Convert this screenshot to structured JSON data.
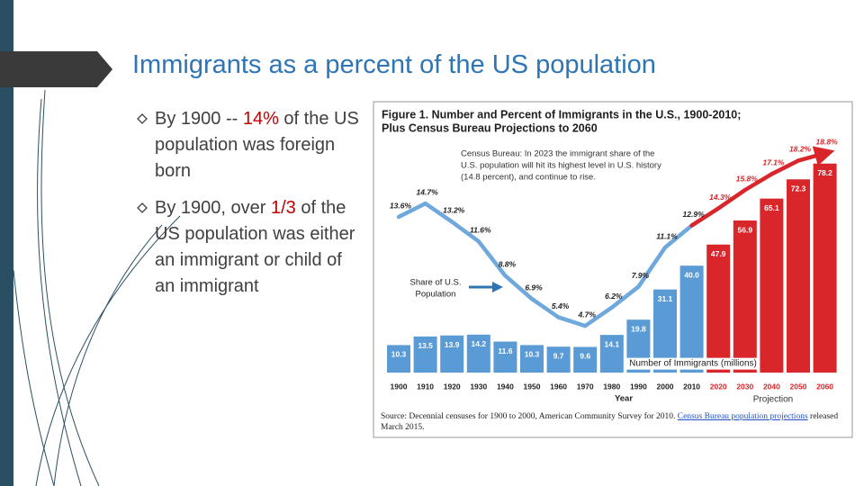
{
  "slide": {
    "title": "Immigrants as a percent of the US population",
    "bullets": [
      {
        "parts": [
          {
            "text": "By 1900 -- ",
            "color": "#404040"
          },
          {
            "text": "14%",
            "color": "#c00000"
          },
          {
            "text": " of the US population was foreign born",
            "color": "#404040"
          }
        ]
      },
      {
        "parts": [
          {
            "text": "By 1900, over ",
            "color": "#404040"
          },
          {
            "text": "1/3",
            "color": "#c00000"
          },
          {
            "text": " of the US population was either an immigrant or child of an immigrant",
            "color": "#404040"
          }
        ]
      }
    ]
  },
  "chart_data": {
    "type": "bar-line",
    "title_lines": [
      "Figure 1. Number and Percent of Immigrants in the U.S., 1900-2010;",
      "Plus Census Bureau Projections to 2060"
    ],
    "annotation_lines": [
      "Census Bureau: In 2023 the immigrant share of the",
      "U.S. population will hit its highest level in U.S. history",
      "(14.8 percent), and continue to rise."
    ],
    "line_label_lines": [
      "Share of U.S.",
      "Population"
    ],
    "bar_label": "Number of Immigrants (millions)",
    "x_label": "Year",
    "projection_label": "Projection",
    "categories": [
      "1900",
      "1910",
      "1920",
      "1930",
      "1940",
      "1950",
      "1960",
      "1970",
      "1980",
      "1990",
      "2000",
      "2010",
      "2020",
      "2030",
      "2040",
      "2050",
      "2060"
    ],
    "series": [
      {
        "name": "Number of Immigrants (millions)",
        "kind": "bar",
        "values": [
          10.3,
          13.5,
          13.9,
          14.2,
          11.6,
          10.3,
          9.7,
          9.6,
          14.1,
          19.8,
          31.1,
          40.0,
          47.9,
          56.9,
          65.1,
          72.3,
          78.2
        ],
        "value_labels": [
          "10.3",
          "13.5",
          "13.9",
          "14.2",
          "11.6",
          "10.3",
          "9.7",
          "9.6",
          "14.1",
          "19.8",
          "31.1",
          "40.0",
          "47.9",
          "56.9",
          "65.1",
          "72.3",
          "78.2"
        ],
        "colors": [
          "#5b9bd5",
          "#5b9bd5",
          "#5b9bd5",
          "#5b9bd5",
          "#5b9bd5",
          "#5b9bd5",
          "#5b9bd5",
          "#5b9bd5",
          "#5b9bd5",
          "#5b9bd5",
          "#5b9bd5",
          "#5b9bd5",
          "#d9262b",
          "#d9262b",
          "#d9262b",
          "#d9262b",
          "#d9262b"
        ]
      },
      {
        "name": "Share of U.S. Population",
        "kind": "line",
        "values": [
          13.6,
          14.7,
          13.2,
          11.6,
          8.8,
          6.9,
          5.4,
          4.7,
          6.2,
          7.9,
          11.1,
          12.9,
          14.3,
          15.8,
          17.1,
          18.2,
          18.8
        ],
        "value_labels": [
          "13.6%",
          "14.7%",
          "13.2%",
          "11.6%",
          "8.8%",
          "6.9%",
          "5.4%",
          "4.7%",
          "6.2%",
          "7.9%",
          "11.1%",
          "12.9%",
          "14.3%",
          "15.8%",
          "17.1%",
          "18.2%",
          "18.8%"
        ],
        "colors": [
          "#6fa8dc",
          "#6fa8dc",
          "#6fa8dc",
          "#6fa8dc",
          "#6fa8dc",
          "#6fa8dc",
          "#6fa8dc",
          "#6fa8dc",
          "#6fa8dc",
          "#6fa8dc",
          "#6fa8dc",
          "#6fa8dc",
          "#d9262b",
          "#d9262b",
          "#d9262b",
          "#d9262b",
          "#d9262b"
        ]
      }
    ],
    "source_parts": [
      {
        "text": "Source: Decennial censuses for 1900 to 2000, American Community Survey for 2010. ",
        "link": false
      },
      {
        "text": "Census Bureau population projections",
        "link": true
      },
      {
        "text": " released March 2015.",
        "link": false
      }
    ]
  }
}
